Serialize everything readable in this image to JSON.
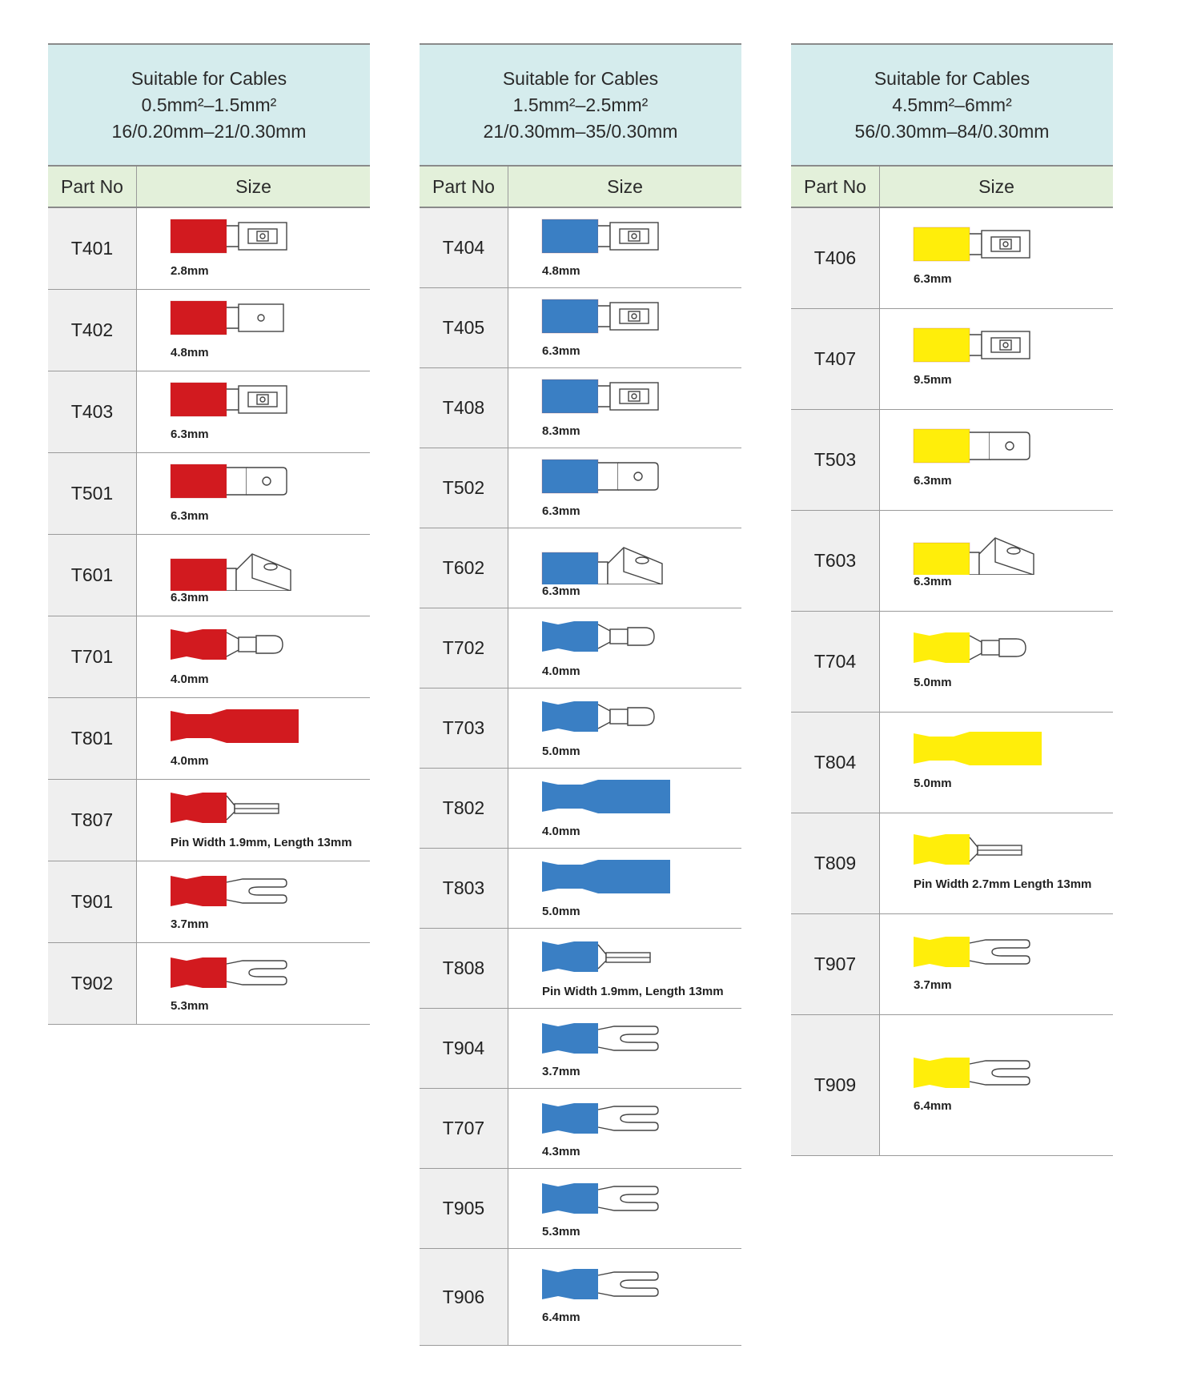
{
  "colors": {
    "header_bg": "#d5eced",
    "colhead_bg": "#e3f0da",
    "part_bg": "#efefef",
    "red": "#d21a1f",
    "blue": "#3a7fc4",
    "yellow": "#ffee0a"
  },
  "column_headers": {
    "part_no": "Part No",
    "size": "Size"
  },
  "tables": [
    {
      "color": "red",
      "title": "Suitable for Cables",
      "range_mm2": "0.5mm²–1.5mm²",
      "strands": "16/0.20mm–21/0.30mm",
      "rows": [
        {
          "part": "T401",
          "size": "2.8mm",
          "icon": "female-disconnect-icon"
        },
        {
          "part": "T402",
          "size": "4.8mm",
          "icon": "male-disconnect-icon"
        },
        {
          "part": "T403",
          "size": "6.3mm",
          "icon": "female-disconnect-icon"
        },
        {
          "part": "T501",
          "size": "6.3mm",
          "icon": "male-blade-icon"
        },
        {
          "part": "T601",
          "size": "6.3mm",
          "icon": "piggyback-disconnect-icon"
        },
        {
          "part": "T701",
          "size": "4.0mm",
          "icon": "bullet-male-icon"
        },
        {
          "part": "T801",
          "size": "4.0mm",
          "icon": "bullet-female-icon"
        },
        {
          "part": "T807",
          "size": "Pin Width 1.9mm, Length 13mm",
          "icon": "pin-terminal-icon"
        },
        {
          "part": "T901",
          "size": "3.7mm",
          "icon": "fork-terminal-icon"
        },
        {
          "part": "T902",
          "size": "5.3mm",
          "icon": "fork-terminal-icon"
        }
      ]
    },
    {
      "color": "blue",
      "title": "Suitable for Cables",
      "range_mm2": "1.5mm²–2.5mm²",
      "strands": "21/0.30mm–35/0.30mm",
      "rows": [
        {
          "part": "T404",
          "size": "4.8mm",
          "icon": "female-disconnect-icon"
        },
        {
          "part": "T405",
          "size": "6.3mm",
          "icon": "female-disconnect-icon"
        },
        {
          "part": "T408",
          "size": "8.3mm",
          "icon": "female-disconnect-icon"
        },
        {
          "part": "T502",
          "size": "6.3mm",
          "icon": "male-blade-icon"
        },
        {
          "part": "T602",
          "size": "6.3mm",
          "icon": "piggyback-disconnect-icon"
        },
        {
          "part": "T702",
          "size": "4.0mm",
          "icon": "bullet-male-icon"
        },
        {
          "part": "T703",
          "size": "5.0mm",
          "icon": "bullet-male-icon"
        },
        {
          "part": "T802",
          "size": "4.0mm",
          "icon": "bullet-female-icon"
        },
        {
          "part": "T803",
          "size": "5.0mm",
          "icon": "bullet-female-icon"
        },
        {
          "part": "T808",
          "size": "Pin Width 1.9mm, Length 13mm",
          "icon": "pin-terminal-icon"
        },
        {
          "part": "T904",
          "size": "3.7mm",
          "icon": "fork-terminal-icon"
        },
        {
          "part": "T707",
          "size": "4.3mm",
          "icon": "fork-terminal-icon"
        },
        {
          "part": "T905",
          "size": "5.3mm",
          "icon": "fork-terminal-icon"
        },
        {
          "part": "T906",
          "size": "6.4mm",
          "icon": "fork-terminal-icon"
        }
      ]
    },
    {
      "color": "yellow",
      "title": "Suitable for Cables",
      "range_mm2": "4.5mm²–6mm²",
      "strands": "56/0.30mm–84/0.30mm",
      "rows": [
        {
          "part": "T406",
          "size": "6.3mm",
          "icon": "female-disconnect-icon"
        },
        {
          "part": "T407",
          "size": "9.5mm",
          "icon": "female-disconnect-icon"
        },
        {
          "part": "T503",
          "size": "6.3mm",
          "icon": "male-blade-icon"
        },
        {
          "part": "T603",
          "size": "6.3mm",
          "icon": "piggyback-disconnect-icon"
        },
        {
          "part": "T704",
          "size": "5.0mm",
          "icon": "bullet-male-icon"
        },
        {
          "part": "T804",
          "size": "5.0mm",
          "icon": "bullet-female-icon"
        },
        {
          "part": "T809",
          "size": "Pin Width 2.7mm Length 13mm",
          "icon": "pin-terminal-icon"
        },
        {
          "part": "T907",
          "size": "3.7mm",
          "icon": "fork-terminal-icon"
        },
        {
          "part": "T909",
          "size": "6.4mm",
          "icon": "fork-terminal-icon"
        }
      ]
    }
  ]
}
